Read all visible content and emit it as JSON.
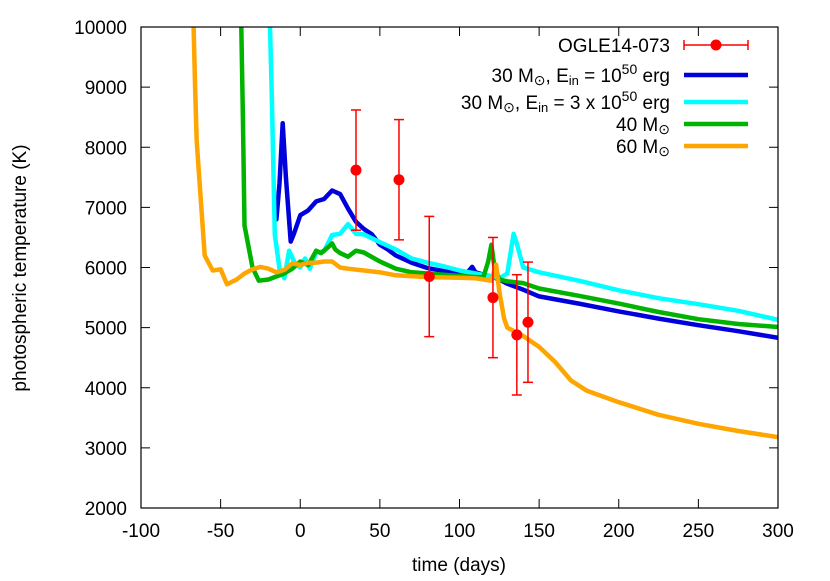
{
  "chart_data": {
    "type": "line",
    "xlabel": "time (days)",
    "ylabel": "photospheric temperature (K)",
    "xlim": [
      -100,
      300
    ],
    "ylim": [
      2000,
      10000
    ],
    "xticks": [
      -100,
      -50,
      0,
      50,
      100,
      150,
      200,
      250,
      300
    ],
    "yticks": [
      2000,
      3000,
      4000,
      5000,
      6000,
      7000,
      8000,
      9000,
      10000
    ],
    "xtick_labels": [
      "-100",
      "-50",
      "0",
      "50",
      "100",
      "150",
      "200",
      "250",
      "300"
    ],
    "ytick_labels": [
      "2000",
      "3000",
      "4000",
      "5000",
      "6000",
      "7000",
      "8000",
      "9000",
      "10000"
    ],
    "grid": false,
    "legend_position": "top-right",
    "observations": {
      "name": "OGLE14-073",
      "color": "#ff0000",
      "points": [
        {
          "x": 35,
          "y": 7620,
          "ylow": 6620,
          "yhigh": 8620
        },
        {
          "x": 62,
          "y": 7460,
          "ylow": 6460,
          "yhigh": 8460
        },
        {
          "x": 81,
          "y": 5850,
          "ylow": 4850,
          "yhigh": 6850
        },
        {
          "x": 121,
          "y": 5500,
          "ylow": 4500,
          "yhigh": 6500
        },
        {
          "x": 136,
          "y": 4880,
          "ylow": 3880,
          "yhigh": 5880
        },
        {
          "x": 143,
          "y": 5090,
          "ylow": 4090,
          "yhigh": 6090
        }
      ]
    },
    "series": [
      {
        "name_main": "30 M",
        "name_sun": "⊙",
        "name_rest_a": ", E",
        "name_sub": "in",
        "name_rest_b": " = 10",
        "name_sup": "50",
        "name_rest_c": " erg",
        "color": "#0000dd",
        "x": [
          -15,
          -13,
          -11,
          -9,
          -6,
          -4,
          0,
          5,
          10,
          15,
          20,
          25,
          30,
          35,
          40,
          45,
          50,
          55,
          60,
          70,
          80,
          90,
          100,
          105,
          108,
          110,
          115,
          120,
          125,
          130,
          140,
          150,
          175,
          200,
          225,
          250,
          275,
          300
        ],
        "y": [
          6800,
          7400,
          8400,
          7500,
          6430,
          6560,
          6870,
          6950,
          7100,
          7140,
          7280,
          7220,
          6980,
          6760,
          6640,
          6550,
          6380,
          6300,
          6200,
          6080,
          5990,
          5940,
          5900,
          5920,
          6010,
          5920,
          5880,
          5850,
          5800,
          5730,
          5630,
          5520,
          5400,
          5270,
          5150,
          5040,
          4940,
          4830
        ]
      },
      {
        "name_main": "30 M",
        "name_sun": "⊙",
        "name_rest_a": ", E",
        "name_sub": "in",
        "name_rest_b": " = 3 x 10",
        "name_sup": "50",
        "name_rest_c": " erg",
        "color": "#00ffff",
        "x": [
          -19,
          -18,
          -16,
          -13,
          -10,
          -7,
          -3,
          0,
          3,
          6,
          10,
          15,
          20,
          25,
          30,
          35,
          40,
          50,
          60,
          70,
          80,
          90,
          100,
          110,
          120,
          125,
          130,
          134,
          136,
          140,
          150,
          175,
          200,
          225,
          250,
          275,
          300
        ],
        "y": [
          10000,
          9000,
          6550,
          5980,
          5820,
          6280,
          6050,
          6000,
          6150,
          5980,
          6250,
          6270,
          6540,
          6560,
          6720,
          6560,
          6550,
          6420,
          6300,
          6150,
          6080,
          6020,
          5950,
          5900,
          5850,
          5820,
          5900,
          6560,
          6400,
          6000,
          5920,
          5780,
          5620,
          5490,
          5390,
          5280,
          5130
        ]
      },
      {
        "name_main": "40 M",
        "name_sun": "⊙",
        "name_rest_a": "",
        "name_sub": "",
        "name_rest_b": "",
        "name_sup": "",
        "name_rest_c": "",
        "color": "#00b300",
        "x": [
          -37,
          -36,
          -35,
          -30,
          -26,
          -20,
          -10,
          -5,
          0,
          5,
          10,
          13,
          18,
          20,
          22,
          25,
          30,
          35,
          40,
          50,
          60,
          70,
          80,
          90,
          100,
          110,
          115,
          118,
          120,
          122,
          125,
          130,
          140,
          150,
          175,
          200,
          225,
          250,
          275,
          300
        ],
        "y": [
          10000,
          8500,
          6700,
          6000,
          5780,
          5800,
          5900,
          5980,
          6100,
          6040,
          6280,
          6240,
          6350,
          6400,
          6300,
          6240,
          6180,
          6280,
          6250,
          6100,
          5980,
          5920,
          5900,
          5880,
          5860,
          5840,
          5840,
          6100,
          6380,
          6000,
          5800,
          5770,
          5740,
          5650,
          5530,
          5400,
          5260,
          5140,
          5060,
          5010
        ]
      },
      {
        "name_main": "60 M",
        "name_sun": "⊙",
        "name_rest_a": "",
        "name_sub": "",
        "name_rest_b": "",
        "name_sup": "",
        "name_rest_c": "",
        "color": "#ffa500",
        "x": [
          -67,
          -66,
          -65,
          -60,
          -55,
          -50,
          -46,
          -40,
          -35,
          -30,
          -25,
          -20,
          -15,
          -10,
          -5,
          0,
          5,
          10,
          15,
          20,
          25,
          30,
          40,
          50,
          60,
          80,
          100,
          110,
          115,
          120,
          123,
          125,
          128,
          130,
          140,
          150,
          160,
          170,
          180,
          200,
          225,
          250,
          275,
          300
        ],
        "y": [
          10000,
          9000,
          8100,
          6200,
          5950,
          5970,
          5720,
          5800,
          5900,
          5970,
          6010,
          5980,
          5920,
          5960,
          6070,
          6040,
          6080,
          6080,
          6100,
          6100,
          6000,
          5980,
          5950,
          5920,
          5870,
          5840,
          5830,
          5820,
          5800,
          5780,
          6050,
          5600,
          5150,
          5000,
          4860,
          4680,
          4430,
          4120,
          3950,
          3760,
          3550,
          3400,
          3280,
          3180
        ]
      }
    ]
  }
}
